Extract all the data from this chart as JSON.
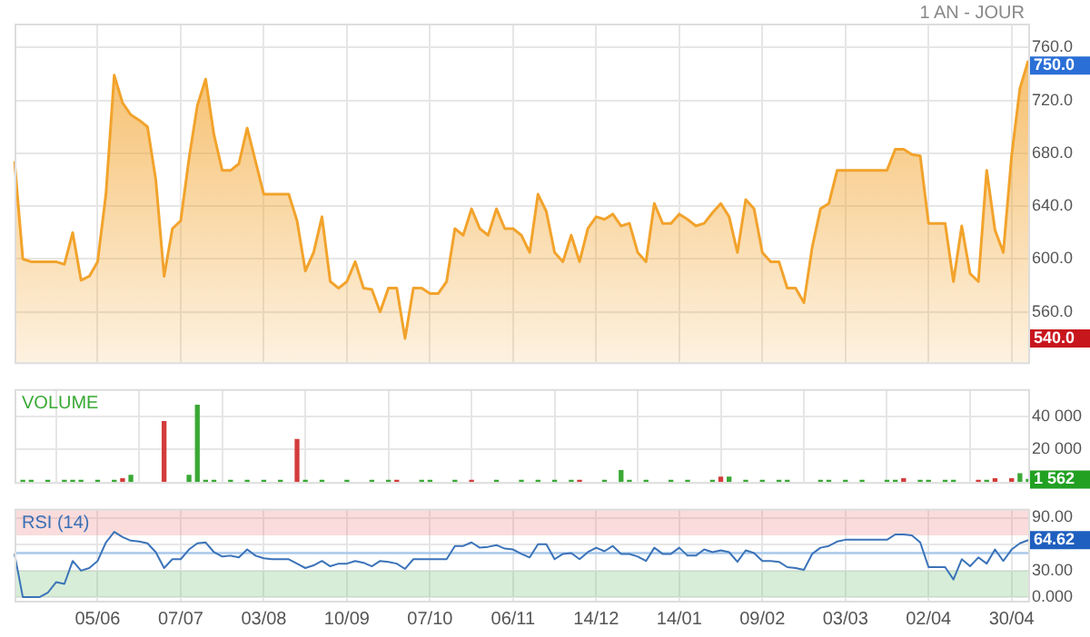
{
  "chart_data": [
    {
      "type": "area",
      "title": "1 AN - JOUR",
      "grid": true,
      "tick_labels": "y",
      "marker": "none",
      "line_style": "solid",
      "categories": [
        null,
        null,
        null,
        null,
        null,
        null,
        null,
        null,
        null,
        null,
        null,
        null,
        null,
        null,
        null,
        null,
        null,
        null,
        null,
        null,
        null,
        null,
        null,
        null,
        null,
        null,
        null,
        null,
        null,
        null,
        null,
        null,
        null,
        null,
        null,
        null,
        null,
        null,
        null,
        null,
        null,
        null,
        null,
        null,
        null,
        null,
        null,
        null,
        null,
        null,
        null,
        null,
        null,
        null,
        null,
        null,
        null,
        null,
        null,
        null,
        null,
        null,
        null,
        null,
        null,
        null,
        null,
        null,
        null,
        null,
        null,
        null,
        null,
        null,
        null,
        null,
        null,
        null,
        null,
        null,
        null,
        null,
        null,
        null,
        null,
        null,
        null,
        null,
        null,
        null,
        null,
        null,
        null,
        null,
        null,
        null,
        null,
        null,
        null,
        null,
        null,
        null,
        null,
        null,
        null,
        null,
        null,
        null,
        null,
        null,
        null,
        null,
        null,
        null,
        null,
        null,
        null,
        null,
        null,
        null,
        null,
        null,
        null
      ],
      "series": [
        {
          "color": "#f2a32c",
          "values": [
            674,
            600,
            598,
            598,
            598,
            598,
            596,
            620,
            584,
            587,
            598,
            649,
            739,
            718,
            709,
            705,
            700,
            660,
            587,
            623,
            629,
            676,
            716,
            736,
            694,
            667,
            667,
            672,
            699,
            674,
            649,
            649,
            649,
            649,
            629,
            591,
            605,
            632,
            583,
            578,
            583,
            598,
            578,
            577,
            560,
            578,
            578,
            540,
            578,
            578,
            574,
            574,
            583,
            623,
            618,
            638,
            623,
            618,
            638,
            623,
            623,
            618,
            605,
            649,
            636,
            605,
            598,
            618,
            598,
            623,
            632,
            630,
            634,
            625,
            627,
            605,
            598,
            642,
            627,
            627,
            634,
            630,
            625,
            627,
            635,
            642,
            632,
            605,
            645,
            638,
            605,
            598,
            598,
            578,
            578,
            567,
            609,
            638,
            642,
            667,
            667,
            667,
            667,
            667,
            667,
            667,
            683,
            683,
            679,
            678,
            627,
            627,
            627,
            583,
            625,
            589,
            583,
            667,
            622,
            605,
            678,
            729,
            750
          ]
        }
      ],
      "ylim": [
        522,
        778
      ],
      "yticks": [
        {
          "value": 560,
          "label": "560.0"
        },
        {
          "value": 600,
          "label": "600.0"
        },
        {
          "value": 640,
          "label": "640.0"
        },
        {
          "value": 680,
          "label": "680.0"
        },
        {
          "value": 720,
          "label": "720.0"
        },
        {
          "value": 760,
          "label": "760.0"
        }
      ],
      "annotations": [
        "750.0",
        "540.0"
      ]
    },
    {
      "type": "bar",
      "title": "VOLUME",
      "grid": true,
      "tick_labels": "y",
      "categories": [
        null,
        null,
        null,
        null,
        null,
        null,
        null,
        null,
        null,
        null,
        null,
        null,
        null,
        null,
        null,
        null,
        null,
        null,
        null,
        null,
        null,
        null,
        null,
        null,
        null,
        null,
        null,
        null,
        null,
        null,
        null,
        null,
        null,
        null,
        null,
        null,
        null,
        null,
        null,
        null,
        null,
        null,
        null,
        null,
        null,
        null,
        null,
        null,
        null,
        null,
        null,
        null,
        null,
        null,
        null,
        null,
        null,
        null,
        null,
        null,
        null,
        null,
        null,
        null,
        null,
        null,
        null,
        null,
        null,
        null,
        null,
        null,
        null,
        null,
        null,
        null,
        null,
        null,
        null,
        null,
        null,
        null,
        null,
        null,
        null,
        null,
        null,
        null,
        null,
        null,
        null,
        null,
        null,
        null,
        null,
        null,
        null,
        null,
        null,
        null,
        null,
        null,
        null,
        null,
        null,
        null,
        null,
        null,
        null,
        null,
        null,
        null,
        null,
        null,
        null,
        null,
        null,
        null,
        null,
        null,
        null,
        null,
        null
      ],
      "series": [
        {
          "color": "#3aa935",
          "values": [
            null,
            1000,
            1000,
            null,
            1000,
            null,
            1000,
            1000,
            1000,
            null,
            1000,
            null,
            1000,
            null,
            4000,
            null,
            null,
            null,
            null,
            null,
            null,
            4000,
            47000,
            1000,
            1000,
            null,
            1000,
            null,
            1000,
            null,
            1000,
            null,
            1000,
            null,
            null,
            1000,
            null,
            1000,
            null,
            null,
            1000,
            null,
            null,
            1000,
            null,
            1000,
            null,
            null,
            null,
            1000,
            1000,
            null,
            null,
            1000,
            null,
            null,
            null,
            null,
            1000,
            null,
            null,
            1000,
            null,
            1000,
            null,
            1000,
            null,
            1000,
            null,
            null,
            null,
            1000,
            null,
            7000,
            1000,
            null,
            1000,
            null,
            null,
            1000,
            null,
            1000,
            null,
            null,
            1000,
            null,
            3000,
            null,
            1000,
            null,
            1000,
            null,
            1000,
            1000,
            null,
            null,
            null,
            1000,
            1000,
            null,
            1000,
            null,
            1000,
            null,
            null,
            1000,
            1000,
            null,
            null,
            1000,
            1000,
            null,
            1000,
            1000,
            null,
            null,
            null,
            1000,
            null,
            null,
            null,
            5000,
            1562
          ]
        },
        {
          "color": "#d33c3c",
          "values": [
            null,
            null,
            null,
            null,
            null,
            null,
            null,
            null,
            null,
            null,
            null,
            null,
            null,
            2000,
            null,
            null,
            null,
            null,
            37000,
            null,
            null,
            null,
            null,
            null,
            null,
            null,
            null,
            null,
            null,
            null,
            null,
            null,
            null,
            null,
            26000,
            null,
            null,
            null,
            null,
            null,
            null,
            null,
            null,
            null,
            null,
            null,
            1000,
            null,
            null,
            null,
            null,
            null,
            null,
            null,
            null,
            1000,
            null,
            null,
            null,
            null,
            null,
            null,
            null,
            null,
            null,
            null,
            null,
            null,
            1000,
            null,
            null,
            null,
            null,
            null,
            null,
            null,
            null,
            null,
            null,
            null,
            null,
            null,
            null,
            null,
            null,
            3000,
            null,
            null,
            null,
            null,
            null,
            null,
            null,
            null,
            null,
            null,
            null,
            null,
            null,
            null,
            null,
            null,
            null,
            null,
            null,
            null,
            null,
            2000,
            null,
            null,
            null,
            null,
            null,
            null,
            null,
            null,
            1000,
            null,
            2000,
            null,
            2000,
            null,
            null
          ]
        }
      ],
      "ylim": [
        0,
        57000
      ],
      "yticks": [
        {
          "value": 20000,
          "label": "20 000"
        },
        {
          "value": 40000,
          "label": "40 000"
        }
      ],
      "annotations": [
        "1 562"
      ]
    },
    {
      "type": "line",
      "title": "RSI (14)",
      "grid": true,
      "marker": "none",
      "line_style": "solid",
      "categories": [
        null,
        null,
        null,
        null,
        null,
        null,
        null,
        null,
        null,
        null,
        "05/06",
        null,
        null,
        null,
        null,
        null,
        null,
        null,
        null,
        null,
        "07/07",
        null,
        null,
        null,
        null,
        null,
        null,
        null,
        null,
        null,
        "03/08",
        null,
        null,
        null,
        null,
        null,
        null,
        null,
        null,
        null,
        "10/09",
        null,
        null,
        null,
        null,
        null,
        null,
        null,
        null,
        null,
        "07/10",
        null,
        null,
        null,
        null,
        null,
        null,
        null,
        null,
        null,
        "06/11",
        null,
        null,
        null,
        null,
        null,
        null,
        null,
        null,
        null,
        "14/12",
        null,
        null,
        null,
        null,
        null,
        null,
        null,
        null,
        null,
        "14/01",
        null,
        null,
        null,
        null,
        null,
        null,
        null,
        null,
        null,
        "09/02",
        null,
        null,
        null,
        null,
        null,
        null,
        null,
        null,
        null,
        "03/03",
        null,
        null,
        null,
        null,
        null,
        null,
        null,
        null,
        null,
        "02/04",
        null,
        null,
        null,
        null,
        null,
        null,
        null,
        null,
        null,
        "30/04",
        null,
        null
      ],
      "series": [
        {
          "color": "#3b73b9",
          "values": [
            49,
            0,
            0,
            0,
            5,
            17,
            15,
            41,
            30,
            33,
            41,
            62,
            74,
            68,
            64,
            63,
            61,
            51,
            33,
            43,
            43,
            54,
            61,
            62,
            51,
            46,
            47,
            45,
            54,
            47,
            44,
            43,
            43,
            43,
            38,
            33,
            36,
            41,
            35,
            38,
            38,
            41,
            39,
            35,
            41,
            40,
            38,
            32,
            43,
            43,
            43,
            43,
            43,
            58,
            58,
            62,
            56,
            57,
            59,
            55,
            54,
            49,
            45,
            60,
            60,
            43,
            49,
            50,
            43,
            51,
            56,
            52,
            58,
            49,
            49,
            46,
            41,
            56,
            49,
            49,
            56,
            47,
            47,
            54,
            51,
            53,
            51,
            40,
            53,
            50,
            41,
            41,
            40,
            34,
            33,
            31,
            49,
            56,
            58,
            63,
            65,
            65,
            65,
            65,
            65,
            65,
            71,
            71,
            70,
            62,
            34,
            34,
            34,
            20,
            43,
            35,
            45,
            38,
            54,
            41,
            54,
            61,
            64.62
          ]
        }
      ],
      "ylim": [
        -4,
        100
      ],
      "yticks": [
        {
          "value": 0,
          "label": "0.000"
        },
        {
          "value": 30,
          "label": "30.00"
        },
        {
          "value": 60,
          "label": null
        },
        {
          "value": 90,
          "label": "90.00"
        }
      ],
      "bands": [
        {
          "axis": "y",
          "from": 70,
          "to": 100,
          "color": "#ee8c8c"
        },
        {
          "axis": "y",
          "from": 0,
          "to": 30,
          "color": "#7cc47c"
        }
      ],
      "ref_lines": [
        {
          "axis": "y",
          "value": 50,
          "color": "#a9c8ea"
        }
      ],
      "annotations": [
        "64.62"
      ]
    }
  ]
}
